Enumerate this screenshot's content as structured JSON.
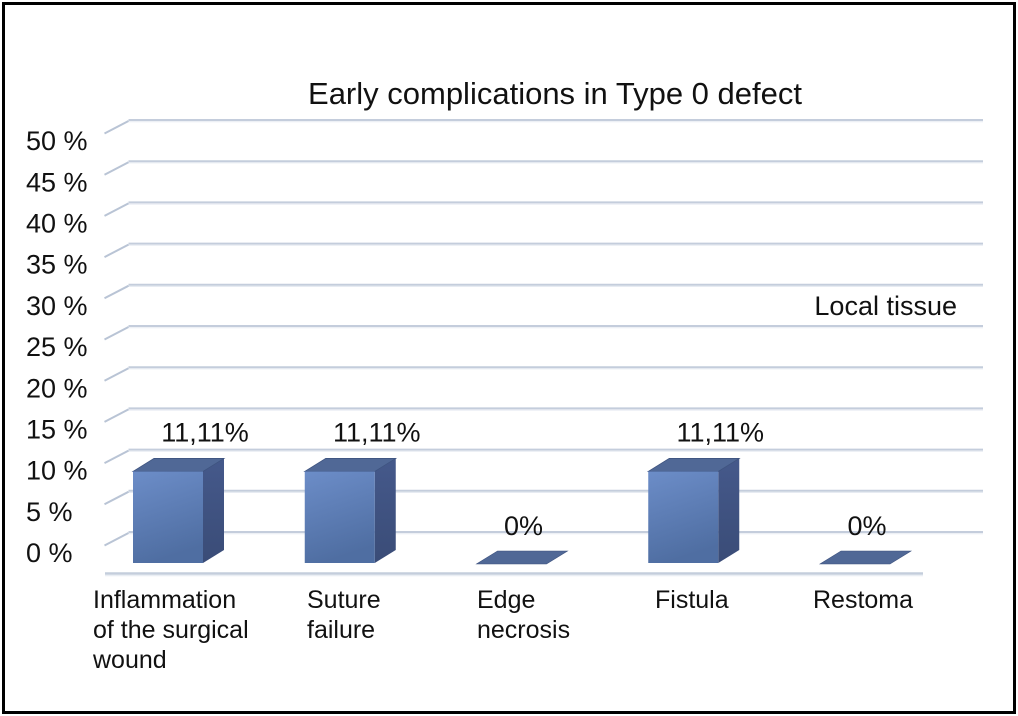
{
  "chart_data": {
    "type": "bar",
    "style": "3d-column",
    "title": "Early complications in Type 0 defect",
    "series_label": "Local tissue",
    "categories": [
      "Inflammation of the surgical wound",
      "Suture failure",
      "Edge necrosis",
      "Fistula",
      "Restoma"
    ],
    "category_lines": [
      [
        "Inflammation",
        "of the surgical",
        "wound"
      ],
      [
        "Suture",
        "failure"
      ],
      [
        "Edge",
        "necrosis"
      ],
      [
        "Fistula"
      ],
      [
        "Restoma"
      ]
    ],
    "values": [
      11.11,
      11.11,
      0,
      11.11,
      0
    ],
    "data_labels": [
      "11,11%",
      "11,11%",
      "0%",
      "11,11%",
      "0%"
    ],
    "y_ticks": [
      "0 %",
      "5 %",
      "10 %",
      "15 %",
      "20 %",
      "25 %",
      "30 %",
      "35 %",
      "40 %",
      "45 %",
      "50 %"
    ],
    "ylim": [
      0,
      50
    ],
    "y_step": 5,
    "grid": true,
    "legend_position": "right",
    "colors": {
      "bar_front_top": "#6C8DC8",
      "bar_front_bottom": "#4F6EA2",
      "bar_top": "#506896",
      "bar_top_edge": "#3E537F",
      "bar_side_top": "#45598B",
      "bar_side_bottom": "#3A4C77",
      "gridline": "#C4CDDC",
      "gridline_light": "#E7EBF2",
      "gridline_diag": "#B9C4D5",
      "text": "#111111",
      "frame_border": "#000000",
      "background": "#ffffff"
    }
  }
}
